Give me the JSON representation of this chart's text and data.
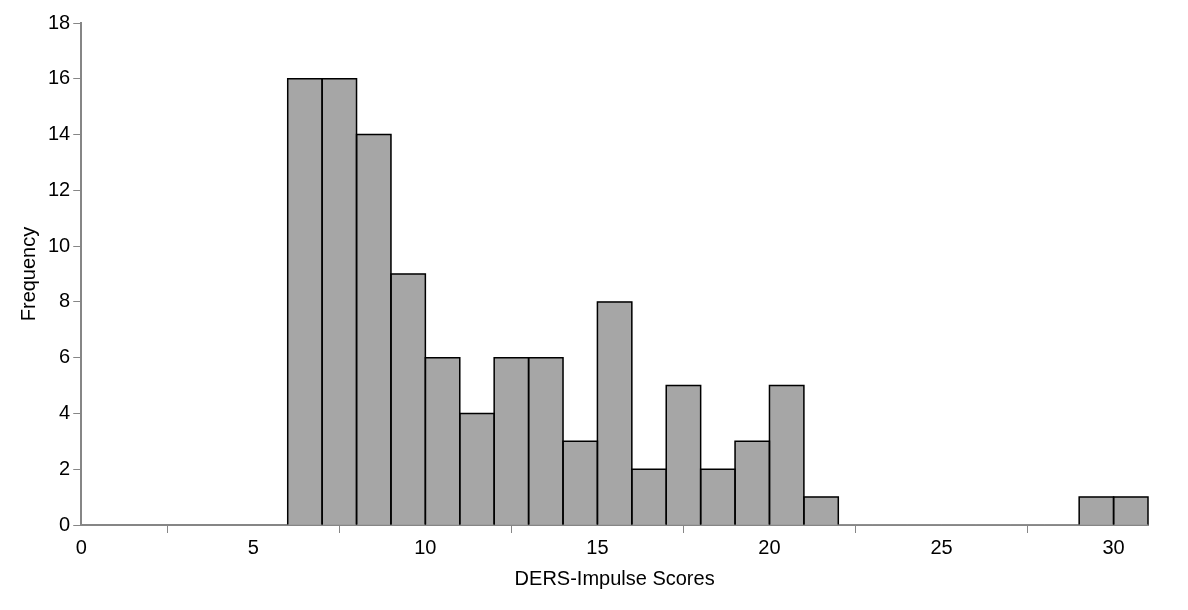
{
  "chart_data": {
    "type": "histogram",
    "xlabel": "DERS-Impulse Scores",
    "ylabel": "Frequency",
    "bins": [
      6,
      7,
      8,
      9,
      10,
      11,
      12,
      13,
      14,
      15,
      16,
      17,
      18,
      19,
      20,
      21,
      22,
      23,
      24,
      25,
      26,
      27,
      28,
      29,
      30,
      31
    ],
    "values": [
      16,
      16,
      14,
      9,
      6,
      4,
      6,
      6,
      3,
      8,
      2,
      5,
      2,
      3,
      5,
      1,
      0,
      0,
      0,
      0,
      0,
      0,
      0,
      1,
      1
    ],
    "color": "#a6a6a6",
    "xlim": [
      0,
      31
    ],
    "xticks": [
      0,
      5,
      10,
      15,
      20,
      25,
      30
    ],
    "ylim": [
      0,
      18
    ],
    "yticks": [
      0,
      2,
      4,
      6,
      8,
      10,
      12,
      14,
      16,
      18
    ],
    "grid": false,
    "legend": false
  }
}
